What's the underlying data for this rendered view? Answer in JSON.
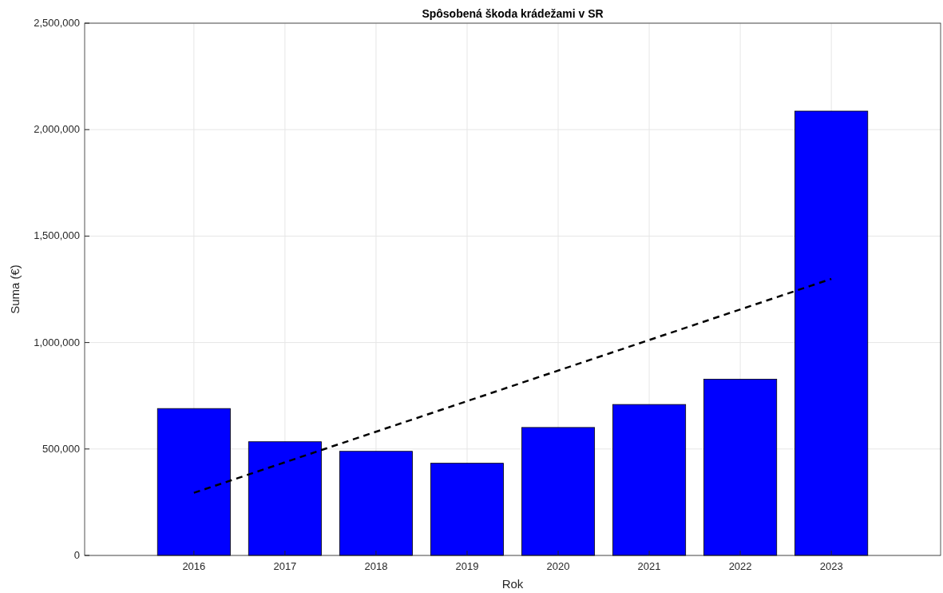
{
  "chart_data": {
    "type": "bar",
    "title": "Spôsobená škoda krádežami v SR",
    "xlabel": "Rok",
    "ylabel": "Suma (€)",
    "x": [
      2016,
      2017,
      2018,
      2019,
      2020,
      2021,
      2022,
      2023
    ],
    "series": [
      {
        "color": "#0000ff",
        "values": [
          690000,
          534000,
          489000,
          433000,
          601000,
          709000,
          828000,
          2087000
        ]
      },
      {
        "type": "line",
        "color": "#000000",
        "line_style": "dashed",
        "x": [
          2016,
          2023
        ],
        "values": [
          294000,
          1299000
        ]
      }
    ],
    "xlim": [
      2014.8,
      2024.2
    ],
    "xticks": [
      2016,
      2017,
      2018,
      2019,
      2020,
      2021,
      2022,
      2023
    ],
    "ylim": [
      0,
      2500000
    ],
    "yticks": [
      {
        "value": 0,
        "label": "0"
      },
      {
        "value": 500000,
        "label": "500,000"
      },
      {
        "value": 1000000,
        "label": "1,000,000"
      },
      {
        "value": 1500000,
        "label": "1,500,000"
      },
      {
        "value": 2000000,
        "label": "2,000,000"
      },
      {
        "value": 2500000,
        "label": "2,500,000"
      }
    ],
    "grid": true
  }
}
